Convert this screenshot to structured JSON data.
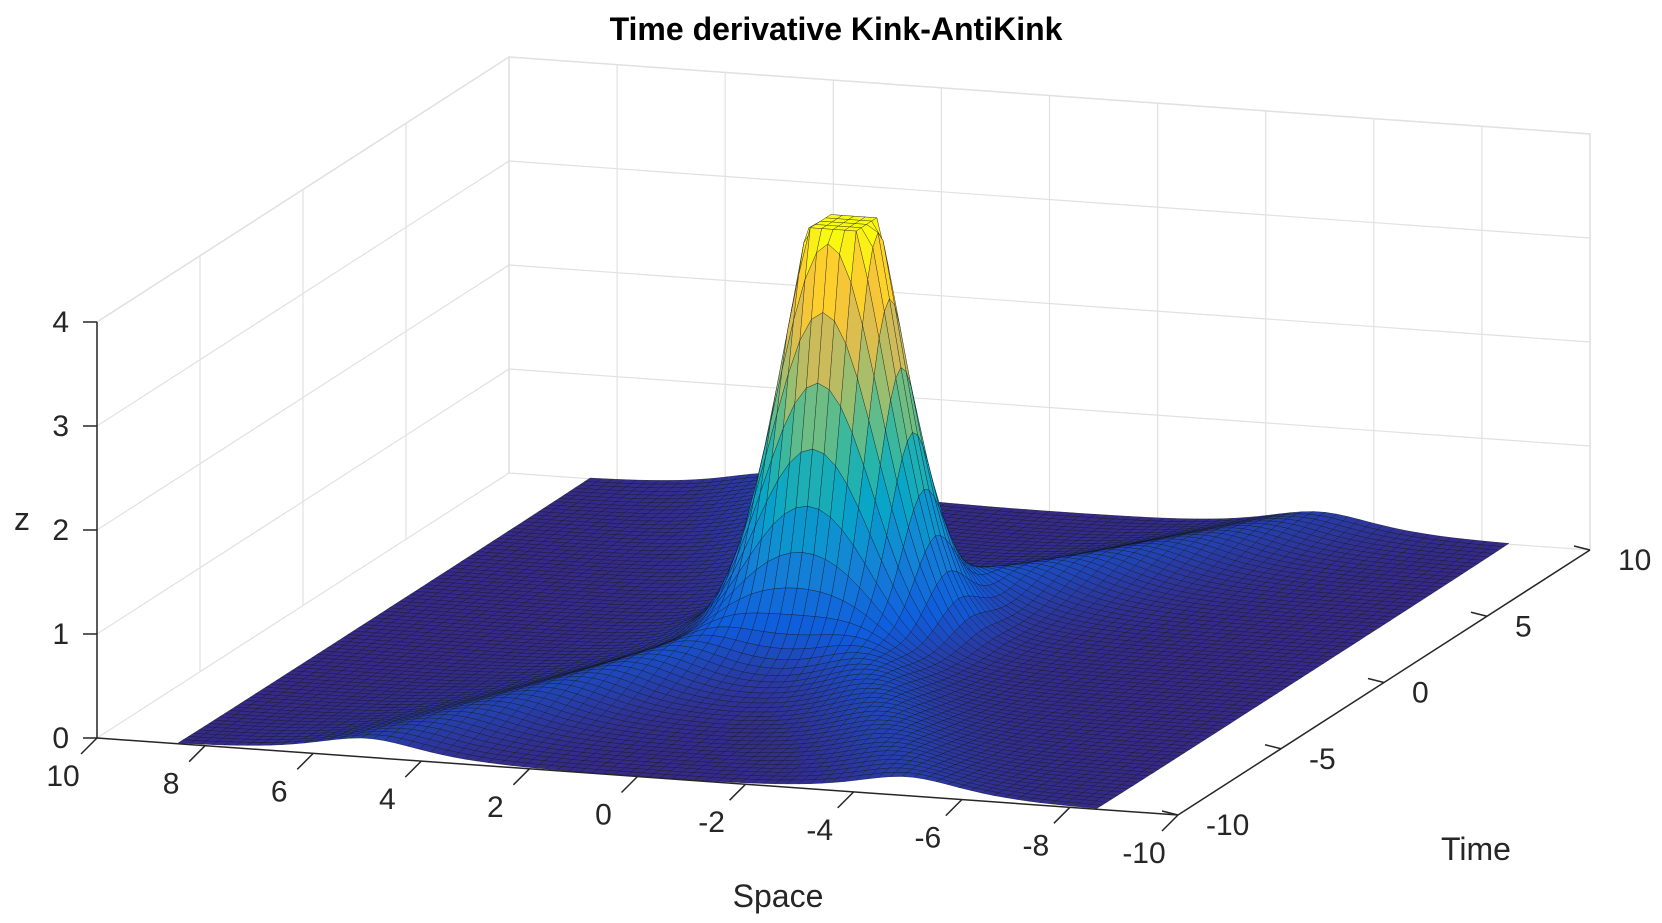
{
  "chart_data": {
    "type": "surface",
    "title": "Time derivative Kink-AntiKink",
    "xlabel": "Space",
    "ylabel": "Time",
    "zlabel": "z",
    "x_range": [
      -10,
      10
    ],
    "y_range": [
      -10,
      10
    ],
    "zlim": [
      0,
      4
    ],
    "x_ticks": [
      10,
      8,
      6,
      4,
      2,
      0,
      -2,
      -4,
      -6,
      -8,
      -10
    ],
    "y_ticks": [
      -10,
      -5,
      0,
      5,
      10
    ],
    "z_ticks": [
      0,
      1,
      2,
      3,
      4
    ],
    "peak": {
      "x": 0,
      "y": 0,
      "z": 4.0
    },
    "grid": true,
    "colormap": "parula",
    "colors": {
      "low": "#352a87",
      "mid_low": "#0f5cdd",
      "mid": "#1481d6",
      "mid_high": "#06a4ca",
      "teal": "#2eb7a4",
      "green": "#87bf77",
      "orange": "#d1bb59",
      "high": "#f9fb0e",
      "grid": "#e1e1e1",
      "axis": "#262626"
    }
  }
}
